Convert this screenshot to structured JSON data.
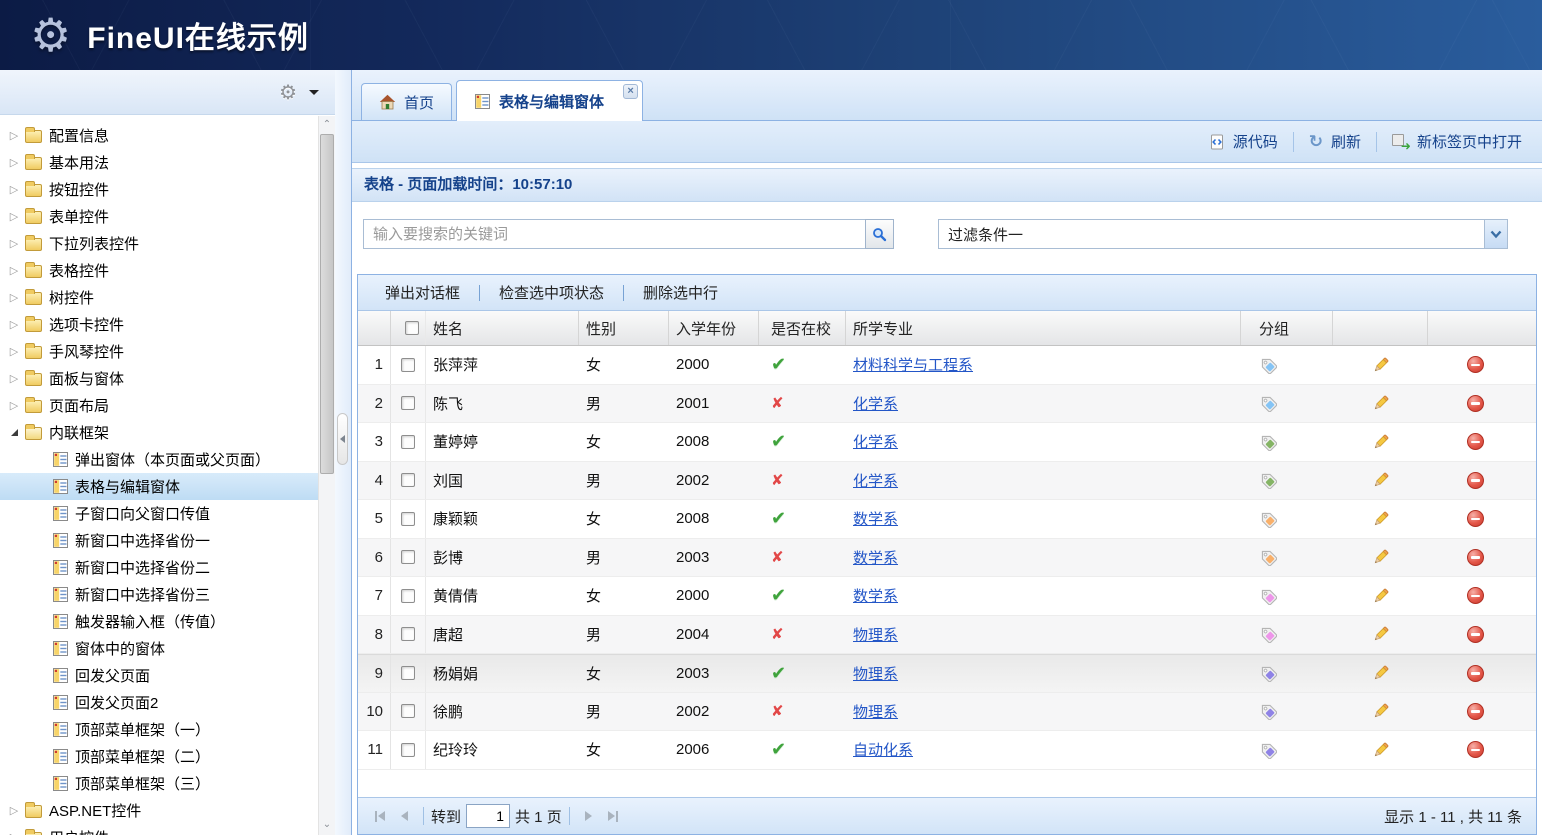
{
  "header": {
    "title": "FineUI在线示例"
  },
  "sidebar": {
    "tree": [
      {
        "type": "folder",
        "label": "配置信息"
      },
      {
        "type": "folder",
        "label": "基本用法"
      },
      {
        "type": "folder",
        "label": "按钮控件"
      },
      {
        "type": "folder",
        "label": "表单控件"
      },
      {
        "type": "folder",
        "label": "下拉列表控件"
      },
      {
        "type": "folder",
        "label": "表格控件"
      },
      {
        "type": "folder",
        "label": "树控件"
      },
      {
        "type": "folder",
        "label": "选项卡控件"
      },
      {
        "type": "folder",
        "label": "手风琴控件"
      },
      {
        "type": "folder",
        "label": "面板与窗体"
      },
      {
        "type": "folder",
        "label": "页面布局"
      },
      {
        "type": "folder-open",
        "label": "内联框架"
      },
      {
        "type": "leaf",
        "label": "弹出窗体（本页面或父页面）"
      },
      {
        "type": "leaf",
        "label": "表格与编辑窗体",
        "selected": true
      },
      {
        "type": "leaf",
        "label": "子窗口向父窗口传值"
      },
      {
        "type": "leaf",
        "label": "新窗口中选择省份一"
      },
      {
        "type": "leaf",
        "label": "新窗口中选择省份二"
      },
      {
        "type": "leaf",
        "label": "新窗口中选择省份三"
      },
      {
        "type": "leaf",
        "label": "触发器输入框（传值）"
      },
      {
        "type": "leaf",
        "label": "窗体中的窗体"
      },
      {
        "type": "leaf",
        "label": "回发父页面"
      },
      {
        "type": "leaf",
        "label": "回发父页面2"
      },
      {
        "type": "leaf",
        "label": "顶部菜单框架（一）"
      },
      {
        "type": "leaf",
        "label": "顶部菜单框架（二）"
      },
      {
        "type": "leaf",
        "label": "顶部菜单框架（三）"
      },
      {
        "type": "folder",
        "label": "ASP.NET控件"
      },
      {
        "type": "folder",
        "label": "用户控件"
      }
    ]
  },
  "tabs": [
    {
      "label": "首页",
      "icon": "home-icon",
      "active": false
    },
    {
      "label": "表格与编辑窗体",
      "icon": "grid-icon",
      "active": true,
      "closable": true
    }
  ],
  "toolbar": {
    "source_label": "源代码",
    "refresh_label": "刷新",
    "newtab_label": "新标签页中打开"
  },
  "panel": {
    "title": "表格 - 页面加载时间：10:57:10"
  },
  "search": {
    "placeholder": "输入要搜索的关键词",
    "icon": "search-icon"
  },
  "filter": {
    "value": "过滤条件一",
    "icon": "chevron-down-icon"
  },
  "grid": {
    "toolbar": [
      "弹出对话框",
      "检查选中项状态",
      "删除选中行"
    ],
    "columns": [
      "姓名",
      "性别",
      "入学年份",
      "是否在校",
      "所学专业",
      "分组"
    ],
    "rows": [
      {
        "n": "1",
        "name": "张萍萍",
        "gender": "女",
        "year": "2000",
        "at_school": true,
        "major": "材料科学与工程系",
        "tag_color": "#85c4f5"
      },
      {
        "n": "2",
        "name": "陈飞",
        "gender": "男",
        "year": "2001",
        "at_school": false,
        "major": "化学系",
        "tag_color": "#85c4f5"
      },
      {
        "n": "3",
        "name": "董婷婷",
        "gender": "女",
        "year": "2008",
        "at_school": true,
        "major": "化学系",
        "tag_color": "#85b465"
      },
      {
        "n": "4",
        "name": "刘国",
        "gender": "男",
        "year": "2002",
        "at_school": false,
        "major": "化学系",
        "tag_color": "#85b465"
      },
      {
        "n": "5",
        "name": "康颖颖",
        "gender": "女",
        "year": "2008",
        "at_school": true,
        "major": "数学系",
        "tag_color": "#f9b06a"
      },
      {
        "n": "6",
        "name": "彭博",
        "gender": "男",
        "year": "2003",
        "at_school": false,
        "major": "数学系",
        "tag_color": "#f9b06a"
      },
      {
        "n": "7",
        "name": "黄倩倩",
        "gender": "女",
        "year": "2000",
        "at_school": true,
        "major": "数学系",
        "tag_color": "#ee96ea"
      },
      {
        "n": "8",
        "name": "唐超",
        "gender": "男",
        "year": "2004",
        "at_school": false,
        "major": "物理系",
        "tag_color": "#ee96ea"
      },
      {
        "n": "9",
        "name": "杨娟娟",
        "gender": "女",
        "year": "2003",
        "at_school": true,
        "major": "物理系",
        "tag_color": "#8f83e6",
        "hover": true
      },
      {
        "n": "10",
        "name": "徐鹏",
        "gender": "男",
        "year": "2002",
        "at_school": false,
        "major": "物理系",
        "tag_color": "#8f83e6"
      },
      {
        "n": "11",
        "name": "纪玲玲",
        "gender": "女",
        "year": "2006",
        "at_school": true,
        "major": "自动化系",
        "tag_color": "#8f83e6"
      }
    ],
    "status_true_color": "#3fa33c",
    "status_false_color": "#e24848",
    "link_color": "#2356c7"
  },
  "pagination": {
    "goto_label": "转到",
    "page_value": "1",
    "total_label": "共 1 页",
    "summary": "显示 1 - 11 , 共 11 条"
  },
  "colors": {
    "chrome_border": "#8db2e3",
    "title_text": "#15428b",
    "header_bg_start": "#0c1b45",
    "header_bg_end": "#2a5d9d"
  }
}
